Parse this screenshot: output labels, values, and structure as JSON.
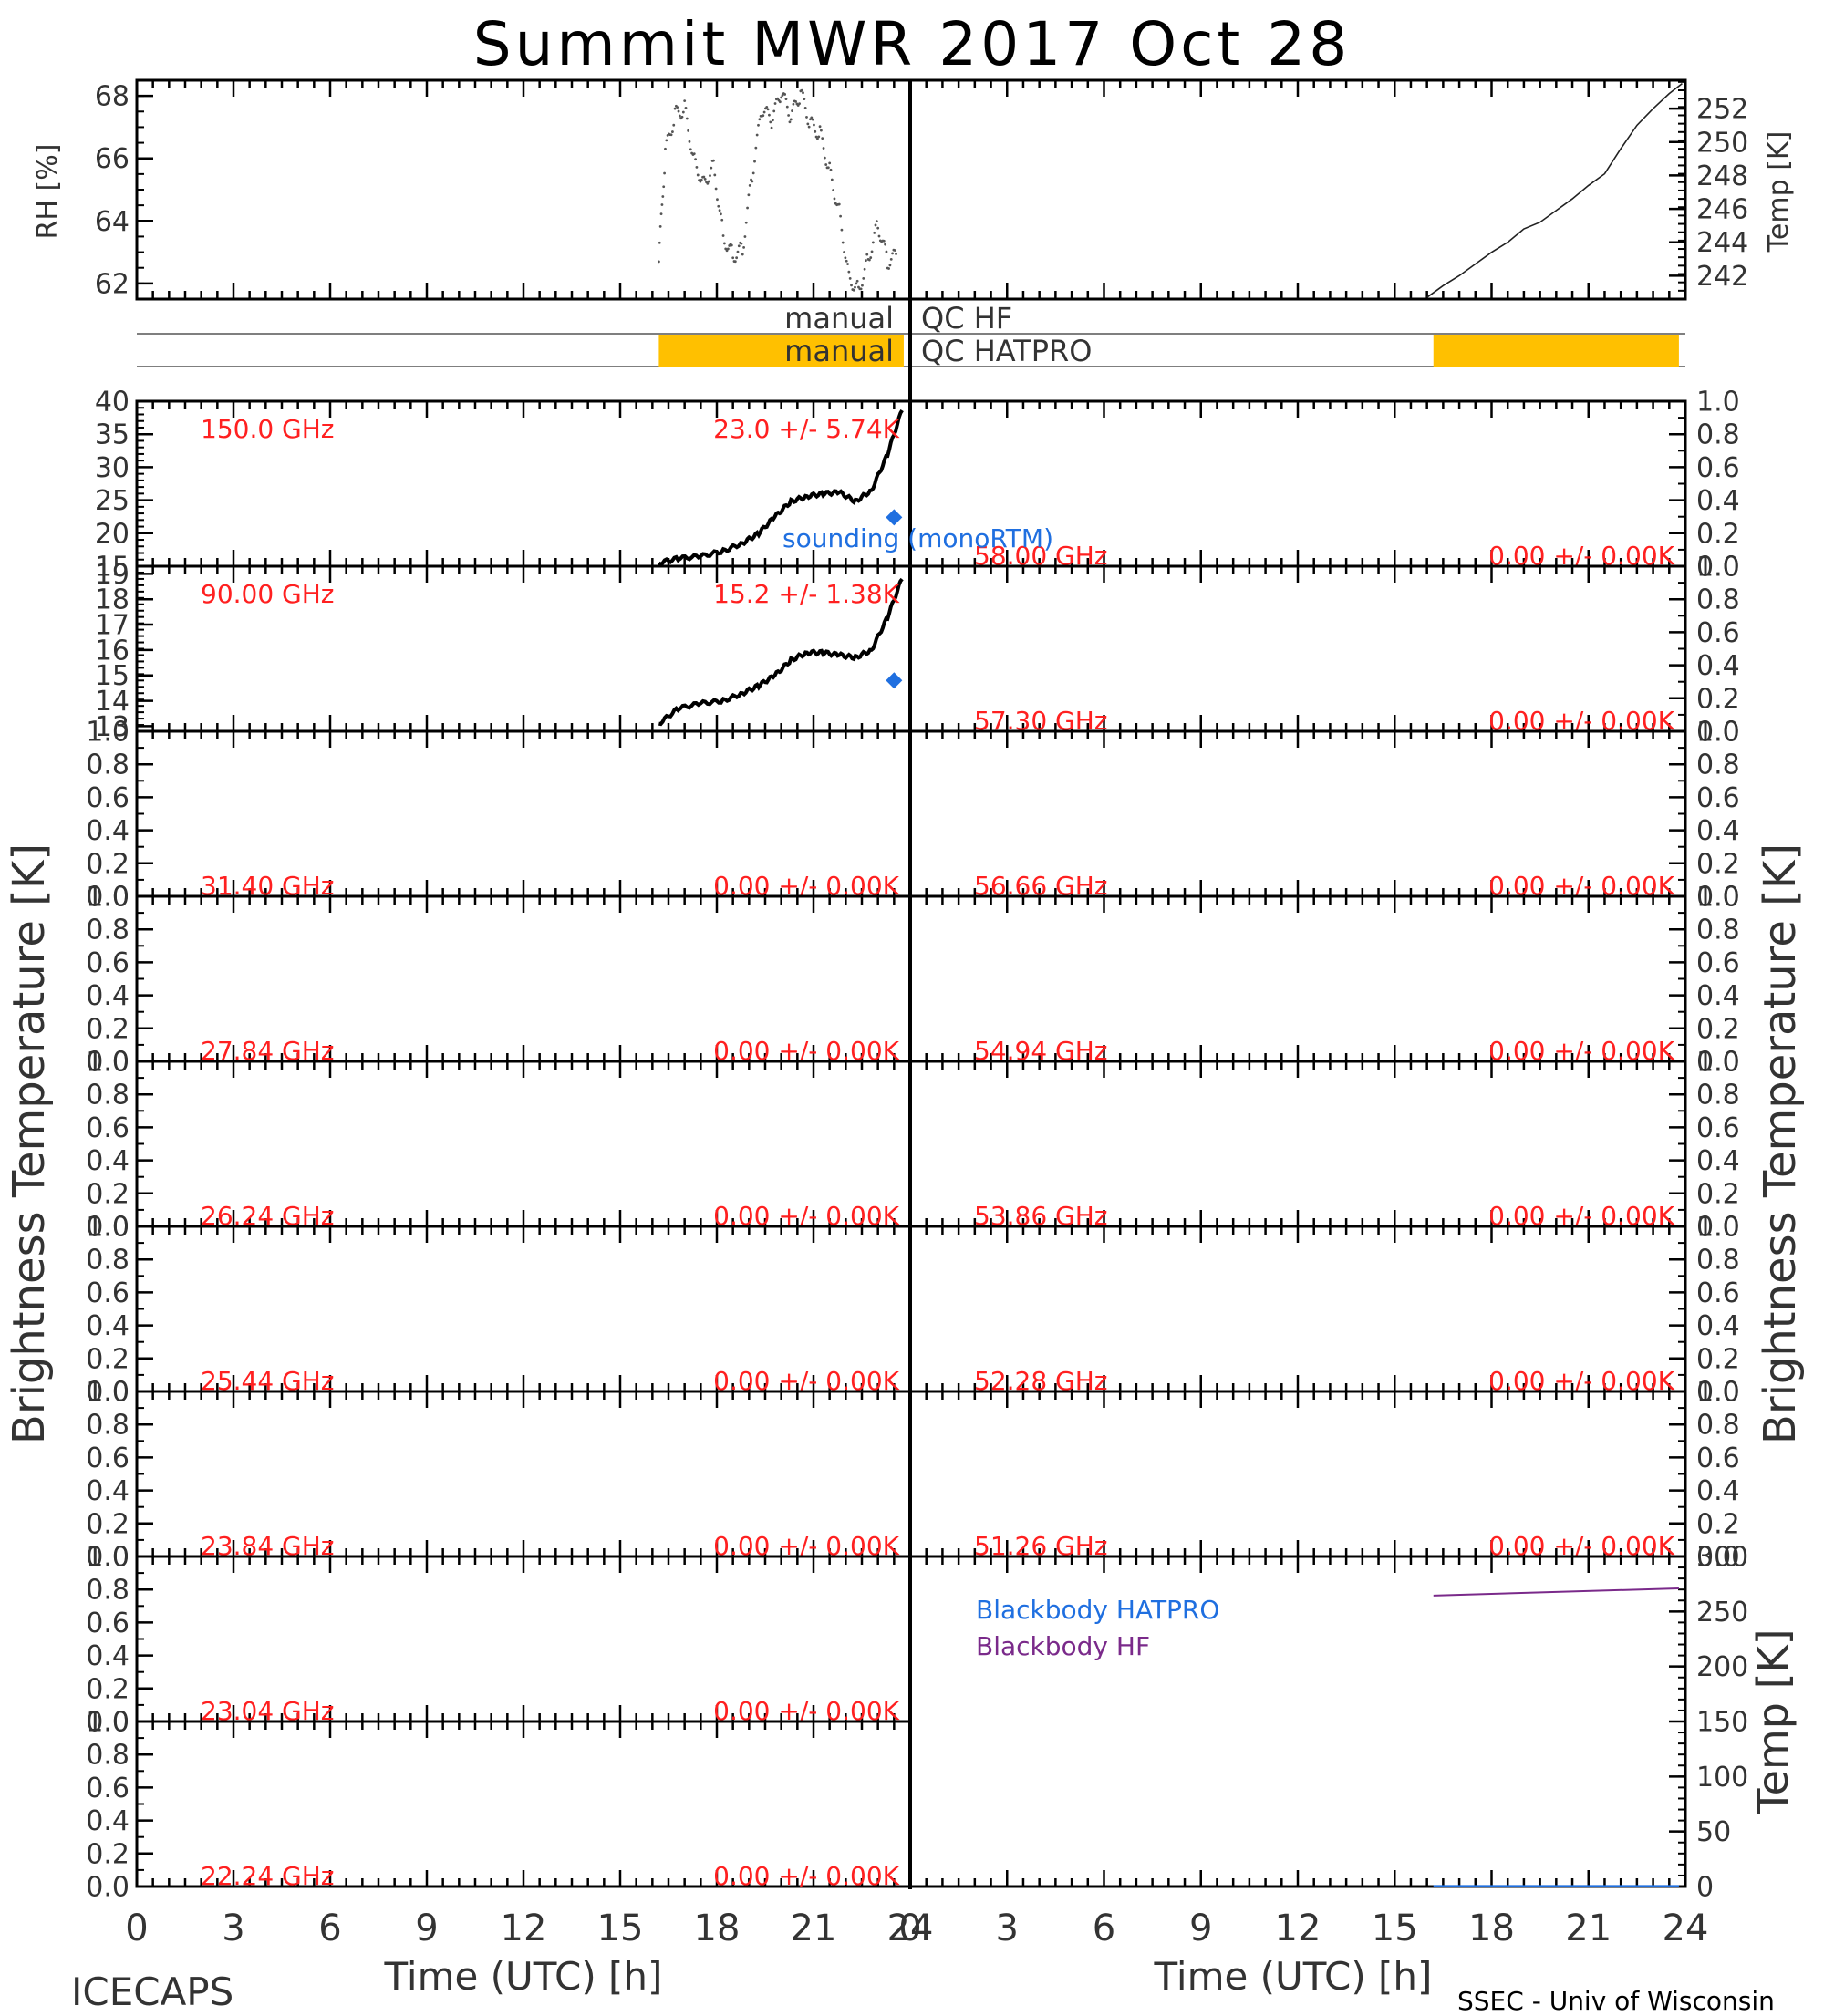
{
  "title": "Summit MWR 2017 Oct 28",
  "footer_left": "ICECAPS",
  "footer_right": "SSEC - Univ of Wisconsin",
  "colors": {
    "label_red": "#ff2020",
    "sounding_blue": "#1f6fe0",
    "qc_orange": "#ffc000",
    "hf_purple": "#7a2a8a",
    "data_black": "#000000"
  },
  "chart_data": [
    {
      "type": "scatter",
      "panel": "rh",
      "ylabel": "RH [%]",
      "ylim": [
        61.5,
        68.5
      ],
      "yticks": [
        62,
        64,
        66,
        68
      ],
      "xlim": [
        0,
        24
      ],
      "x": [
        16.2,
        16.4,
        16.7,
        17.0,
        17.3,
        17.6,
        17.9,
        18.2,
        18.5,
        18.8,
        19.1,
        19.4,
        19.7,
        20.0,
        20.3,
        20.6,
        20.9,
        21.2,
        21.5,
        21.8,
        22.1,
        22.4,
        22.7,
        23.0,
        23.3,
        23.6
      ],
      "y": [
        62.7,
        66.2,
        67.4,
        67.6,
        65.9,
        65.2,
        65.8,
        63.5,
        62.9,
        63.1,
        65.5,
        67.6,
        67.2,
        68.1,
        67.3,
        68.1,
        67.1,
        66.8,
        65.6,
        64.3,
        62.2,
        61.8,
        62.8,
        63.9,
        62.7,
        62.9
      ]
    },
    {
      "type": "line",
      "panel": "temp",
      "ylabel": "Temp [K]",
      "ylim": [
        240.6,
        253.7
      ],
      "yticks": [
        242,
        244,
        246,
        248,
        250,
        252
      ],
      "xlim": [
        0,
        24
      ],
      "x": [
        16.0,
        16.5,
        17.0,
        17.5,
        18.0,
        18.5,
        19.0,
        19.5,
        20.0,
        20.5,
        21.0,
        21.5,
        22.0,
        22.5,
        23.0,
        23.5,
        23.9
      ],
      "y": [
        240.7,
        241.4,
        242.0,
        242.7,
        243.4,
        244.0,
        244.8,
        245.2,
        245.9,
        246.6,
        247.4,
        248.1,
        249.6,
        251.0,
        252.0,
        252.9,
        253.5
      ]
    },
    {
      "type": "timeline",
      "panel": "qc",
      "rows": [
        {
          "label_left": "manual",
          "label_right": "QC HF",
          "segments": []
        },
        {
          "label_left": "manual",
          "label_right": "QC HATPRO",
          "segments_left": [
            [
              16.2,
              23.8
            ]
          ],
          "segments_right": [
            [
              16.2,
              23.8
            ]
          ]
        }
      ]
    },
    {
      "type": "line",
      "panel": "bt-150",
      "freq_label": "150.0 GHz",
      "stat_label": "23.0 +/-  5.74K",
      "ylim": [
        15,
        40
      ],
      "yticks": [
        15,
        20,
        25,
        30,
        35,
        40
      ],
      "x": [
        16.2,
        16.8,
        17.5,
        18.2,
        18.8,
        19.3,
        19.8,
        20.3,
        20.8,
        21.3,
        21.8,
        22.3,
        22.8,
        23.3,
        23.8
      ],
      "y": [
        15.5,
        16.2,
        16.5,
        17.3,
        18.5,
        20.0,
        22.5,
        24.8,
        25.6,
        26.0,
        26.2,
        24.8,
        26.5,
        32.0,
        39.5
      ],
      "sounding": {
        "label": "sounding (monoRTM)",
        "x": 23.5,
        "y": 22.4
      }
    },
    {
      "type": "line",
      "panel": "bt-90",
      "freq_label": "90.00 GHz",
      "stat_label": "15.2 +/-  1.38K",
      "ylim": [
        12.8,
        19.3
      ],
      "yticks": [
        13,
        14,
        15,
        16,
        17,
        18,
        19
      ],
      "x": [
        16.2,
        16.8,
        17.5,
        18.2,
        18.8,
        19.3,
        19.8,
        20.3,
        20.8,
        21.3,
        21.8,
        22.3,
        22.8,
        23.3,
        23.8
      ],
      "y": [
        13.1,
        13.7,
        13.9,
        14.0,
        14.3,
        14.6,
        15.0,
        15.6,
        15.9,
        15.9,
        15.8,
        15.7,
        16.0,
        17.3,
        19.0
      ],
      "sounding": {
        "x": 23.5,
        "y": 14.8
      }
    },
    {
      "type": "line",
      "panel": "bt-31.40",
      "freq_label": "31.40 GHz",
      "stat_label": "0.00 +/-  0.00K",
      "ylim": [
        0,
        1
      ],
      "x": [],
      "y": []
    },
    {
      "type": "line",
      "panel": "bt-27.84",
      "freq_label": "27.84 GHz",
      "stat_label": "0.00 +/-  0.00K",
      "ylim": [
        0,
        1
      ],
      "x": [],
      "y": []
    },
    {
      "type": "line",
      "panel": "bt-26.24",
      "freq_label": "26.24 GHz",
      "stat_label": "0.00 +/-  0.00K",
      "ylim": [
        0,
        1
      ],
      "x": [],
      "y": []
    },
    {
      "type": "line",
      "panel": "bt-25.44",
      "freq_label": "25.44 GHz",
      "stat_label": "0.00 +/-  0.00K",
      "ylim": [
        0,
        1
      ],
      "x": [],
      "y": []
    },
    {
      "type": "line",
      "panel": "bt-23.84",
      "freq_label": "23.84 GHz",
      "stat_label": "0.00 +/-  0.00K",
      "ylim": [
        0,
        1
      ],
      "x": [],
      "y": []
    },
    {
      "type": "line",
      "panel": "bt-23.04",
      "freq_label": "23.04 GHz",
      "stat_label": "0.00 +/-  0.00K",
      "ylim": [
        0,
        1
      ],
      "x": [],
      "y": []
    },
    {
      "type": "line",
      "panel": "bt-22.24",
      "freq_label": "22.24 GHz",
      "stat_label": "0.00 +/-  0.00K",
      "ylim": [
        0,
        1
      ],
      "x": [],
      "y": []
    },
    {
      "type": "line",
      "panel": "bt-58.00",
      "freq_label": "58.00 GHz",
      "stat_label": "0.00 +/-  0.00K",
      "ylim": [
        0,
        1
      ],
      "x": [],
      "y": []
    },
    {
      "type": "line",
      "panel": "bt-57.30",
      "freq_label": "57.30 GHz",
      "stat_label": "0.00 +/-  0.00K",
      "ylim": [
        0,
        1
      ],
      "x": [],
      "y": []
    },
    {
      "type": "line",
      "panel": "bt-56.66",
      "freq_label": "56.66 GHz",
      "stat_label": "0.00 +/-  0.00K",
      "ylim": [
        0,
        1
      ],
      "x": [],
      "y": []
    },
    {
      "type": "line",
      "panel": "bt-54.94",
      "freq_label": "54.94 GHz",
      "stat_label": "0.00 +/-  0.00K",
      "ylim": [
        0,
        1
      ],
      "x": [],
      "y": []
    },
    {
      "type": "line",
      "panel": "bt-53.86",
      "freq_label": "53.86 GHz",
      "stat_label": "0.00 +/-  0.00K",
      "ylim": [
        0,
        1
      ],
      "x": [],
      "y": []
    },
    {
      "type": "line",
      "panel": "bt-52.28",
      "freq_label": "52.28 GHz",
      "stat_label": "0.00 +/-  0.00K",
      "ylim": [
        0,
        1
      ],
      "x": [],
      "y": []
    },
    {
      "type": "line",
      "panel": "bt-51.26",
      "freq_label": "51.26 GHz",
      "stat_label": "0.00 +/-  0.00K",
      "ylim": [
        0,
        1
      ],
      "x": [],
      "y": []
    },
    {
      "type": "line",
      "panel": "blackbody",
      "ylabel": "Temp [K]",
      "ylim": [
        0,
        300
      ],
      "yticks": [
        0,
        50,
        100,
        150,
        200,
        250,
        300
      ],
      "legend": [
        "Blackbody HATPRO",
        "Blackbody HF"
      ],
      "series": [
        {
          "name": "Blackbody HF",
          "x": [
            16.2,
            23.8
          ],
          "y": [
            264.5,
            271.0
          ]
        },
        {
          "name": "Blackbody HATPRO",
          "x": [
            16.2,
            23.8
          ],
          "y": [
            0.5,
            0.5
          ]
        }
      ]
    }
  ],
  "axes": {
    "xlim": [
      0,
      24
    ],
    "xticks": [
      0,
      3,
      6,
      9,
      12,
      15,
      18,
      21,
      24
    ],
    "xticks_right": [
      0,
      3,
      6,
      9,
      12,
      15,
      18,
      21,
      24
    ],
    "xlabel": "Time (UTC) [h]",
    "bt_ylabel": "Brightness Temperature [K]",
    "unit_yticks": [
      "0.0",
      "0.2",
      "0.4",
      "0.6",
      "0.8",
      "1.0"
    ]
  }
}
